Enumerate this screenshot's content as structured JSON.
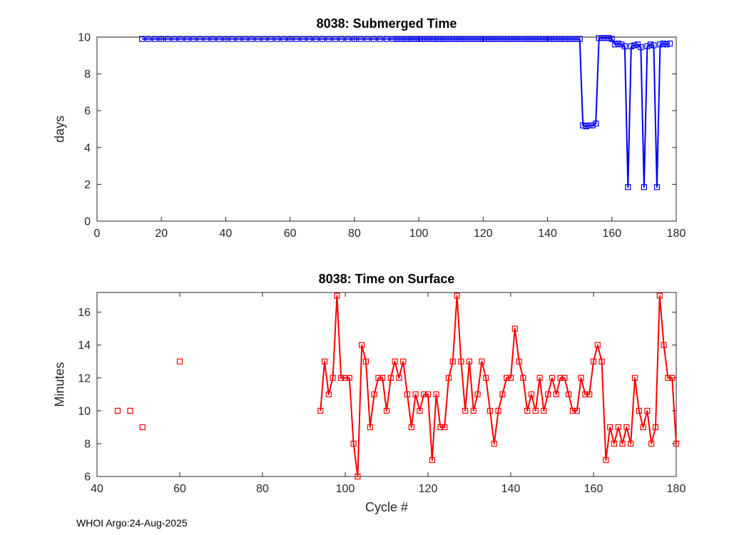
{
  "footer": {
    "text": "WHOI Argo:24-Aug-2025"
  },
  "colors": {
    "axes": "#262626",
    "background": "#ffffff",
    "submerged_line": "#0000ff",
    "surface_line": "#ff0000"
  },
  "chart_data": [
    {
      "type": "line",
      "title": "8038: Submerged Time",
      "xlabel": "",
      "ylabel": "days",
      "xlim": [
        0,
        180
      ],
      "ylim": [
        0,
        10
      ],
      "xticks": [
        0,
        20,
        40,
        60,
        80,
        100,
        120,
        140,
        160,
        180
      ],
      "yticks": [
        0,
        2,
        4,
        6,
        8,
        10
      ],
      "grid": false,
      "legend": "none",
      "series": [
        {
          "name": "submerged-days",
          "color": "#0000ff",
          "marker": "square",
          "runs": [
            {
              "line": true,
              "x": [
                14,
                16,
                18,
                20,
                22,
                24,
                26,
                28,
                30,
                32,
                34,
                36,
                38,
                40,
                42,
                44,
                46,
                48,
                50,
                52,
                54,
                56,
                58,
                60,
                62,
                64,
                66,
                68,
                70,
                72,
                74,
                76,
                78,
                80,
                82,
                84,
                86,
                88,
                90,
                92,
                93,
                94,
                95,
                96,
                97,
                98,
                99,
                100,
                101,
                102,
                103,
                104,
                105,
                106,
                107,
                108,
                109,
                110,
                111,
                112,
                113,
                114,
                115,
                116,
                117,
                118,
                119,
                120,
                121,
                122,
                123,
                124,
                125,
                126,
                127,
                128,
                129,
                130,
                131,
                132,
                133,
                134,
                135,
                136,
                137,
                138,
                139,
                140,
                141,
                142,
                143,
                144,
                145,
                146,
                147,
                148,
                149,
                150,
                151,
                152,
                153,
                154,
                155,
                156,
                157,
                158,
                159,
                160,
                161,
                162,
                163,
                164,
                165,
                166,
                167,
                168,
                169,
                170,
                171,
                172,
                173,
                174,
                175,
                176,
                177,
                178
              ],
              "y": [
                9.9,
                9.9,
                9.9,
                9.9,
                9.9,
                9.9,
                9.9,
                9.9,
                9.9,
                9.9,
                9.9,
                9.9,
                9.9,
                9.9,
                9.9,
                9.9,
                9.9,
                9.9,
                9.9,
                9.9,
                9.9,
                9.9,
                9.9,
                9.9,
                9.9,
                9.9,
                9.9,
                9.9,
                9.9,
                9.9,
                9.9,
                9.9,
                9.9,
                9.9,
                9.9,
                9.9,
                9.9,
                9.9,
                9.9,
                9.9,
                9.9,
                9.9,
                9.9,
                9.9,
                9.9,
                9.9,
                9.9,
                9.9,
                9.9,
                9.9,
                9.9,
                9.9,
                9.9,
                9.9,
                9.9,
                9.9,
                9.9,
                9.9,
                9.9,
                9.9,
                9.9,
                9.9,
                9.9,
                9.9,
                9.9,
                9.9,
                9.9,
                9.9,
                9.9,
                9.9,
                9.9,
                9.9,
                9.9,
                9.9,
                9.9,
                9.9,
                9.9,
                9.9,
                9.9,
                9.9,
                9.9,
                9.9,
                9.9,
                9.9,
                9.9,
                9.9,
                9.9,
                9.9,
                9.9,
                9.9,
                9.9,
                9.9,
                9.9,
                9.9,
                9.9,
                9.9,
                9.9,
                9.9,
                5.2,
                5.15,
                5.2,
                5.2,
                5.3,
                9.95,
                9.95,
                9.95,
                9.95,
                9.9,
                9.6,
                9.65,
                9.6,
                9.5,
                1.85,
                9.5,
                9.55,
                9.6,
                9.45,
                1.85,
                9.5,
                9.6,
                9.55,
                1.85,
                9.6,
                9.65,
                9.6,
                9.65
              ]
            }
          ]
        }
      ]
    },
    {
      "type": "line",
      "title": "8038: Time on Surface",
      "xlabel": "Cycle #",
      "ylabel": "Minutes",
      "xlim": [
        40,
        180
      ],
      "ylim": [
        6,
        17.2
      ],
      "xticks": [
        40,
        60,
        80,
        100,
        120,
        140,
        160,
        180
      ],
      "yticks": [
        6,
        8,
        10,
        12,
        14,
        16
      ],
      "grid": false,
      "legend": "none",
      "series": [
        {
          "name": "surface-minutes",
          "color": "#ff0000",
          "marker": "square",
          "runs": [
            {
              "line": false,
              "x": [
                45,
                48,
                51,
                60
              ],
              "y": [
                10,
                10,
                9,
                13
              ]
            },
            {
              "line": true,
              "x": [
                94,
                95,
                96,
                97,
                98,
                99,
                100,
                101,
                102,
                103,
                104,
                105,
                106,
                107,
                108,
                109,
                110,
                111,
                112,
                113,
                114,
                115,
                116,
                117,
                118,
                119,
                120,
                121,
                122,
                123,
                124,
                125,
                126,
                127,
                128,
                129,
                130,
                131,
                132,
                133,
                134,
                135,
                136,
                137,
                138,
                139,
                140,
                141,
                142,
                143,
                144,
                145,
                146,
                147,
                148,
                149,
                150,
                151,
                152,
                153,
                154,
                155,
                156,
                157,
                158,
                159,
                160,
                161,
                162,
                163,
                164,
                165,
                166,
                167,
                168,
                169,
                170,
                171,
                172,
                173,
                174,
                175,
                176,
                177,
                178,
                179,
                180
              ],
              "y": [
                10,
                13,
                11,
                12,
                17,
                12,
                12,
                12,
                8,
                6,
                14,
                13,
                9,
                11,
                12,
                12,
                10,
                12,
                13,
                12,
                13,
                11,
                9,
                11,
                10,
                11,
                11,
                7,
                11,
                9,
                9,
                12,
                13,
                17,
                13,
                10,
                13,
                10,
                11,
                13,
                12,
                10,
                8,
                10,
                11,
                12,
                12,
                15,
                13,
                12,
                10,
                11,
                10,
                12,
                10,
                11,
                12,
                11,
                12,
                12,
                11,
                10,
                10,
                12,
                11,
                11,
                13,
                14,
                13,
                7,
                9,
                8,
                9,
                8,
                9,
                8,
                12,
                10,
                9,
                10,
                8,
                9,
                17,
                14,
                12,
                12,
                8
              ]
            }
          ]
        }
      ]
    }
  ]
}
